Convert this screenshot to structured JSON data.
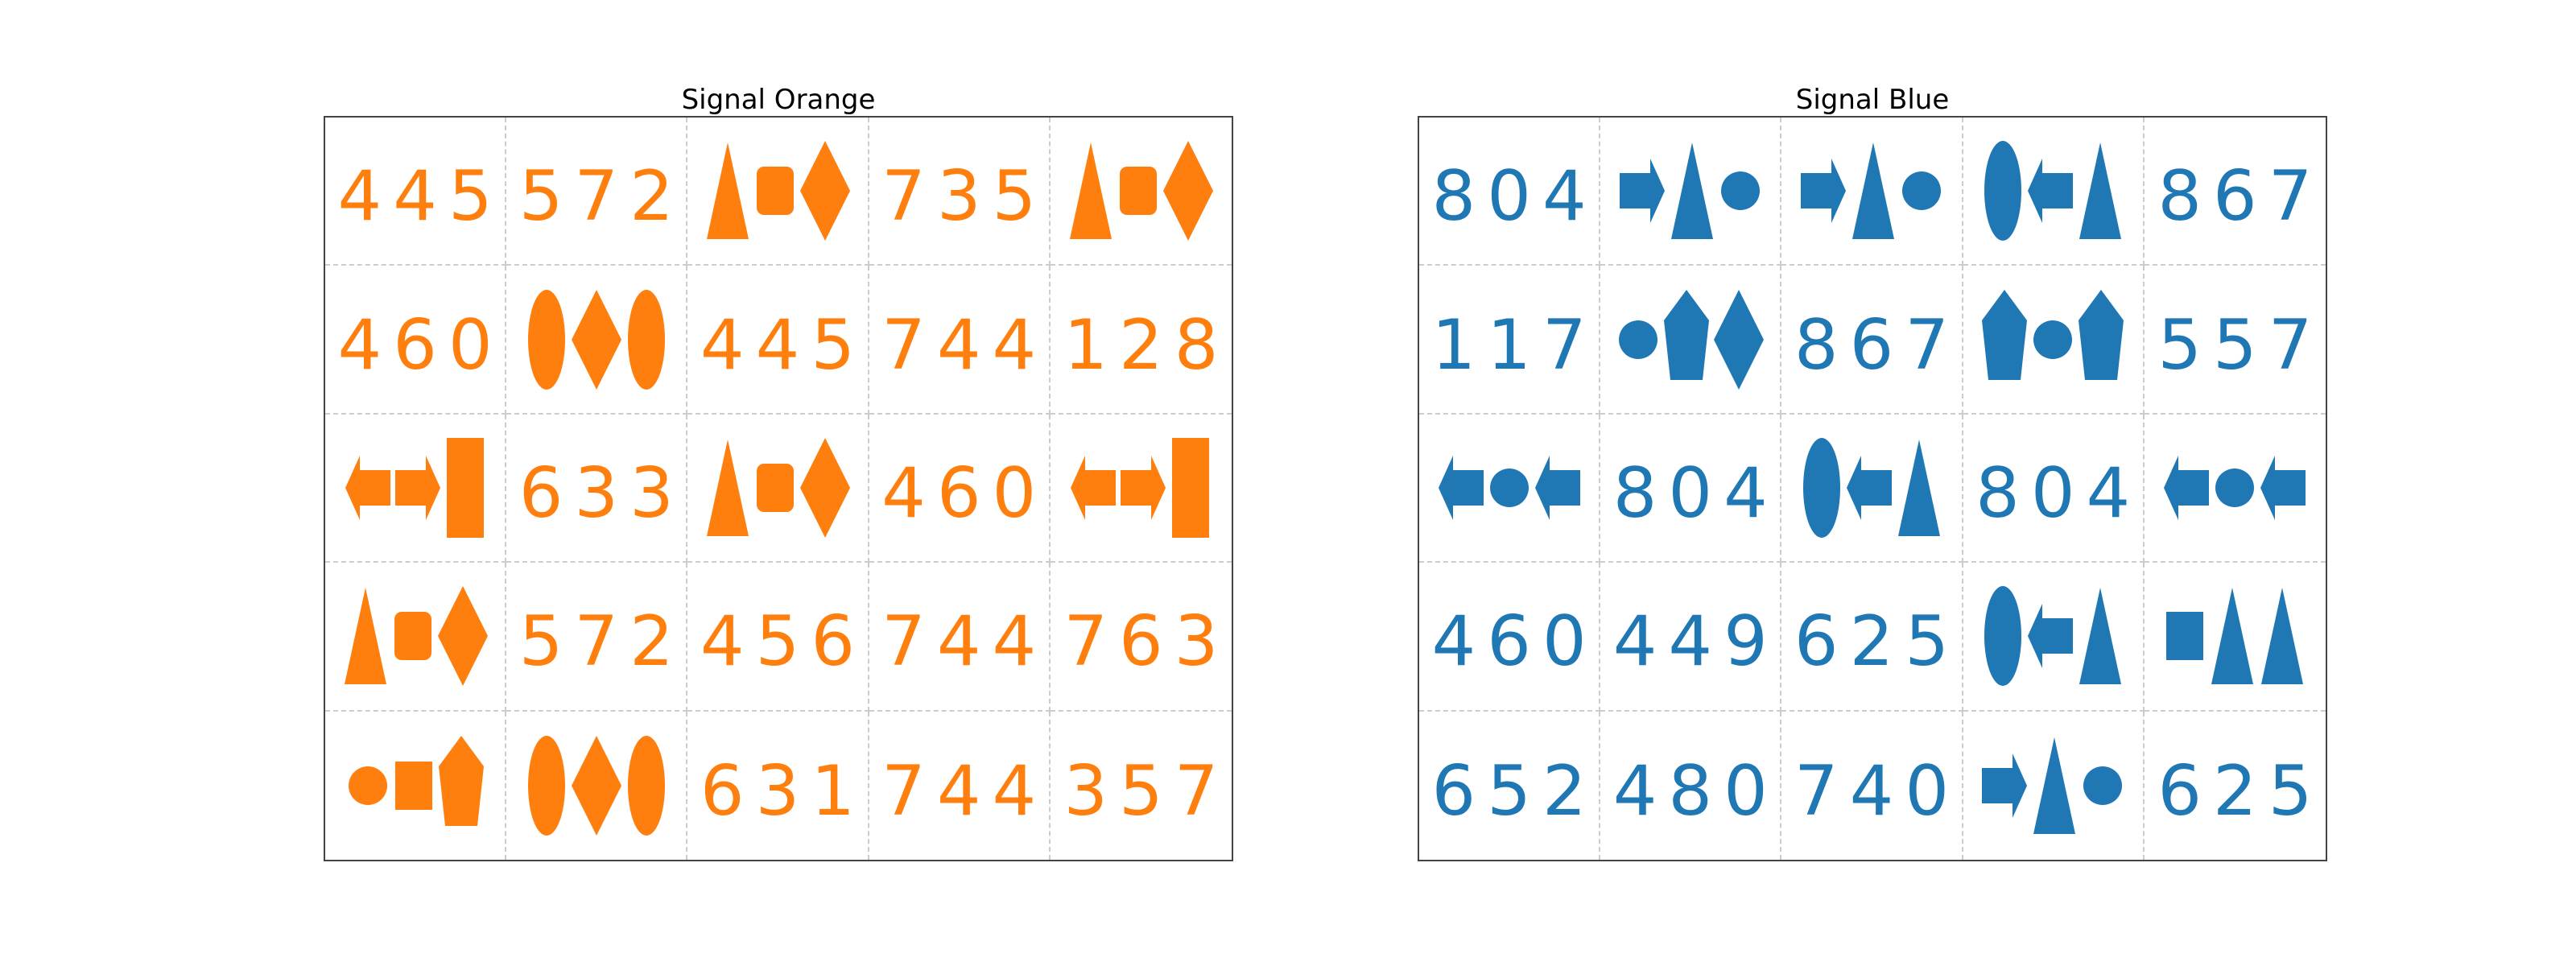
{
  "panels": [
    {
      "id": "orange",
      "title": "Signal Orange",
      "color": "#ff7f0e",
      "cells": [
        [
          "445",
          "572",
          "shape:triangle,rounded-square,diamond",
          "735",
          "shape:triangle,rounded-square,diamond"
        ],
        [
          "460",
          "shape:ellipse,diamond,ellipse",
          "445",
          "744",
          "128"
        ],
        [
          "shape:arrow-left,arrow-right,tall-rect",
          "633",
          "shape:triangle,rounded-square,diamond",
          "460",
          "shape:arrow-left,arrow-right,tall-rect"
        ],
        [
          "shape:triangle,rounded-square,diamond",
          "572",
          "456",
          "744",
          "763"
        ],
        [
          "shape:circle,square,pentagon",
          "shape:ellipse,diamond,ellipse",
          "631",
          "744",
          "357"
        ]
      ]
    },
    {
      "id": "blue",
      "title": "Signal Blue",
      "color": "#1f77b4",
      "cells": [
        [
          "804",
          "shape:arrow-right,triangle,circle",
          "shape:arrow-right,triangle,circle",
          "shape:ellipse,arrow-left,triangle",
          "867"
        ],
        [
          "117",
          "shape:circle,pentagon,diamond",
          "867",
          "shape:pentagon,circle,pentagon",
          "557"
        ],
        [
          "shape:arrow-left,circle,arrow-left",
          "804",
          "shape:ellipse,arrow-left,triangle",
          "804",
          "shape:arrow-left,circle,arrow-left"
        ],
        [
          "460",
          "449",
          "625",
          "shape:ellipse,arrow-left,triangle",
          "shape:square,triangle,triangle"
        ],
        [
          "652",
          "480",
          "740",
          "shape:arrow-right,triangle,circle",
          "625"
        ]
      ]
    }
  ]
}
